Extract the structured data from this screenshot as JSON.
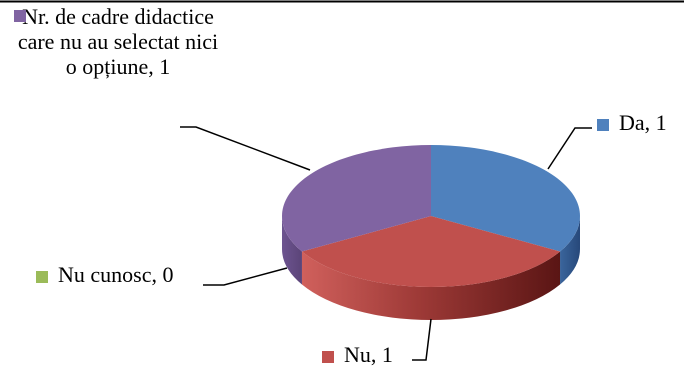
{
  "chart_data": {
    "type": "pie",
    "three_d": true,
    "legend": "none",
    "slices": [
      {
        "label": "Da",
        "value": 1,
        "text": "Da, 1",
        "color": "#4f81bd"
      },
      {
        "label": "Nu",
        "value": 1,
        "text": "Nu, 1",
        "color": "#c0504d"
      },
      {
        "label": "Nu cunosc",
        "value": 0,
        "text": "Nu cunosc, 0",
        "color": "#9bbb59"
      },
      {
        "label": "Nr. de cadre didactice care nu au selectat nici o opțiune",
        "value": 1,
        "text": "Nr. de cadre didactice care nu au selectat nici o opțiune, 1",
        "color": "#8064a2"
      }
    ]
  }
}
